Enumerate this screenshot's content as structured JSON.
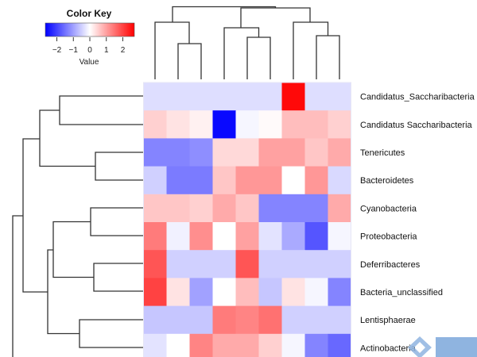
{
  "chart_data": {
    "type": "heatmap",
    "title": "",
    "color_key": {
      "title": "Color Key",
      "xlabel": "Value",
      "range": [
        -2.7,
        2.7
      ],
      "ticks": [
        -2,
        -1,
        0,
        1,
        2
      ],
      "tick_labels": [
        "−2",
        "−1",
        "0",
        "1",
        "2"
      ],
      "low_color": "#0000ff",
      "mid_color": "#ffffff",
      "high_color": "#ff0000"
    },
    "rows": [
      "Candidatus_Saccharibacteria",
      "Candidatus Saccharibacteria",
      "Tenericutes",
      "Bacteroidetes",
      "Cyanobacteria",
      "Proteobacteria",
      "Deferribacteres",
      "Bacteria_unclassified",
      "Lentisphaerae",
      "Actinobacteria"
    ],
    "n_columns": 9,
    "values": [
      [
        -0.35,
        -0.35,
        -0.35,
        -0.35,
        -0.35,
        -0.35,
        2.6,
        -0.35,
        -0.35
      ],
      [
        0.5,
        0.3,
        0.15,
        -2.6,
        -0.1,
        0.05,
        0.7,
        0.7,
        0.5
      ],
      [
        -1.3,
        -1.3,
        -1.2,
        0.4,
        0.4,
        1.0,
        1.0,
        0.6,
        0.9
      ],
      [
        -0.5,
        -1.4,
        -1.4,
        0.6,
        1.1,
        1.1,
        0.0,
        1.1,
        -0.4
      ],
      [
        0.6,
        0.6,
        0.5,
        0.9,
        0.6,
        -1.3,
        -1.3,
        -1.3,
        0.9
      ],
      [
        1.4,
        -0.15,
        1.2,
        0.0,
        1.0,
        -0.3,
        -0.9,
        -1.8,
        -0.1
      ],
      [
        1.8,
        -0.5,
        -0.5,
        -0.5,
        1.8,
        -0.5,
        -0.5,
        -0.5,
        -0.5
      ],
      [
        2.0,
        0.3,
        -1.0,
        0.0,
        0.7,
        -0.6,
        0.3,
        -0.1,
        -1.3
      ],
      [
        -0.6,
        -0.6,
        -0.6,
        1.4,
        1.3,
        1.5,
        -0.5,
        -0.5,
        -0.5
      ],
      [
        -0.3,
        0.0,
        1.3,
        0.9,
        0.9,
        0.5,
        -0.1,
        -1.3,
        -1.6
      ]
    ],
    "row_dendrogram": true,
    "column_dendrogram": true
  },
  "watermark_color": "#8fb4e0"
}
